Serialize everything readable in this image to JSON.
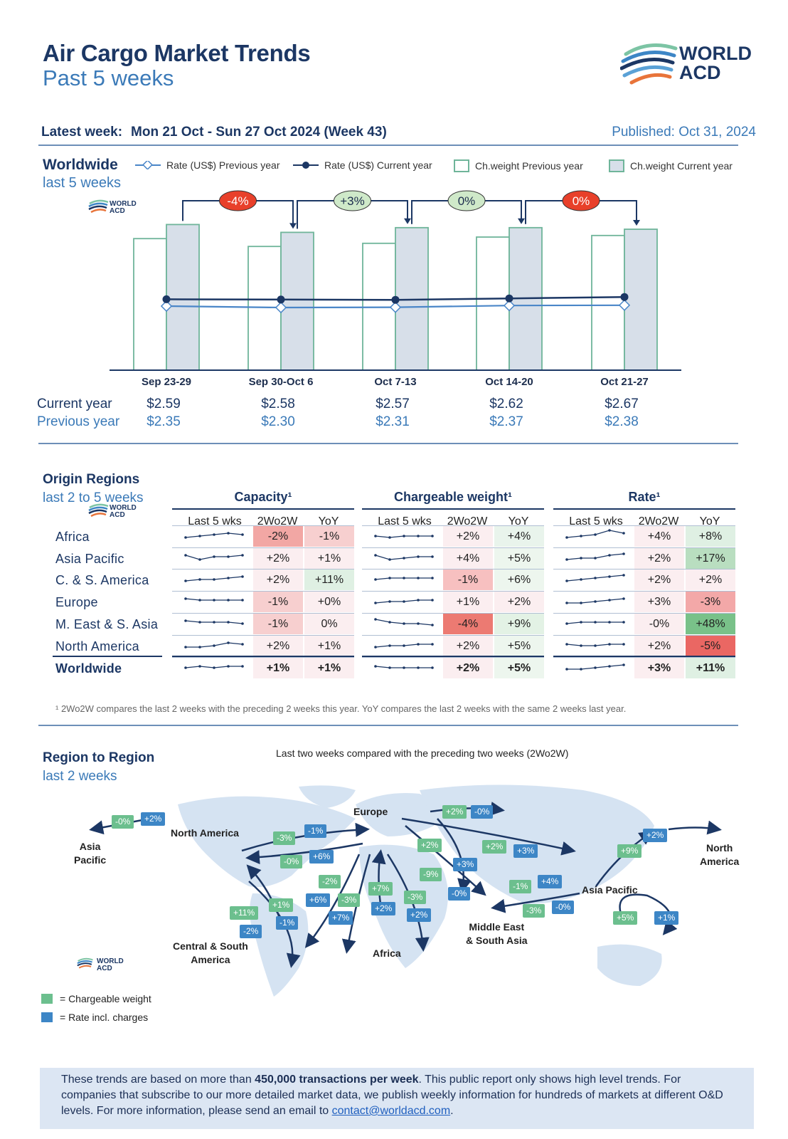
{
  "header": {
    "title": "Air Cargo Market Trends",
    "subtitle": "Past 5 weeks",
    "logo_text_1": "WORLD",
    "logo_text_2": "ACD",
    "latest_label": "Latest week:",
    "latest_value": "Mon 21 Oct - Sun 27 Oct 2024 (Week 43)",
    "published": "Published: Oct 31, 2024"
  },
  "worldwide": {
    "title": "Worldwide",
    "subtitle": "last 5 weeks",
    "small_logo_1": "WORLD",
    "small_logo_2": "ACD",
    "legend": {
      "rate_prev": "Rate (US$) Previous year",
      "rate_curr": "Rate (US$) Current year",
      "cw_prev": "Ch.weight Previous year",
      "cw_curr": "Ch.weight Current year"
    },
    "current_label": "Current year",
    "previous_label": "Previous year"
  },
  "chart_data": {
    "type": "bar",
    "categories": [
      "Sep 23-29",
      "Sep 30-Oct 6",
      "Oct 7-13",
      "Oct 14-20",
      "Oct 21-27"
    ],
    "series": [
      {
        "name": "Ch.weight Previous year",
        "kind": "bar",
        "values": [
          0.84,
          0.79,
          0.81,
          0.85,
          0.86
        ]
      },
      {
        "name": "Ch.weight Current year",
        "kind": "bar",
        "values": [
          0.93,
          0.88,
          0.91,
          0.91,
          0.9
        ]
      },
      {
        "name": "Rate (US$) Current year",
        "kind": "line",
        "values": [
          2.59,
          2.58,
          2.57,
          2.62,
          2.67
        ],
        "labels": [
          "$2.59",
          "$2.58",
          "$2.57",
          "$2.62",
          "$2.67"
        ]
      },
      {
        "name": "Rate (US$) Previous year",
        "kind": "line",
        "values": [
          2.35,
          2.3,
          2.31,
          2.37,
          2.38
        ],
        "labels": [
          "$2.35",
          "$2.30",
          "$2.31",
          "$2.37",
          "$2.38"
        ]
      }
    ],
    "week_changes": [
      "-4%",
      "+3%",
      "0%",
      "0%"
    ],
    "week_change_colors": [
      "#e8402a",
      "#cfe9c9",
      "#cfe9c9",
      "#e8402a"
    ],
    "rate_range": [
      0,
      3.2
    ],
    "weight_scale": "relative",
    "legend_position": "top"
  },
  "origin": {
    "title": "Origin Regions",
    "subtitle": "last 2 to 5 weeks",
    "groups": [
      "Capacity¹",
      "Chargeable weight¹",
      "Rate¹"
    ],
    "subheads": [
      "Last 5 wks",
      "2Wo2W",
      "YoY"
    ],
    "rows": [
      {
        "name": "Africa",
        "cap": [
          "-2%",
          "-1%"
        ],
        "cw": [
          "+2%",
          "+4%"
        ],
        "rate": [
          "+4%",
          "+8%"
        ],
        "spark": [
          [
            3,
            4,
            5,
            6,
            5
          ],
          [
            4,
            3,
            4,
            4,
            4
          ],
          [
            3,
            4,
            5,
            8,
            6
          ]
        ],
        "colors": [
          "#f2a7a4",
          "#f7cfcf",
          "#fbeef0",
          "#e9f4ec",
          "#fbeef0",
          "#dff0e3"
        ]
      },
      {
        "name": "Asia Pacific",
        "cap": [
          "+2%",
          "+1%"
        ],
        "cw": [
          "+4%",
          "+5%"
        ],
        "rate": [
          "+2%",
          "+17%"
        ],
        "spark": [
          [
            6,
            3,
            5,
            5,
            6
          ],
          [
            6,
            3,
            4,
            5,
            5
          ],
          [
            3,
            4,
            4,
            6,
            7
          ]
        ],
        "colors": [
          "#fbeef0",
          "#fbeef0",
          "#fbeef0",
          "#edf6ee",
          "#fbeef0",
          "#b9dec0"
        ]
      },
      {
        "name": "C. & S. America",
        "cap": [
          "+2%",
          "+11%"
        ],
        "cw": [
          "-1%",
          "+6%"
        ],
        "rate": [
          "+2%",
          "+2%"
        ],
        "spark": [
          [
            3,
            4,
            4,
            5,
            6
          ],
          [
            4,
            5,
            5,
            5,
            5
          ],
          [
            3,
            4,
            5,
            6,
            7
          ]
        ],
        "colors": [
          "#fbeef0",
          "#dff0e3",
          "#f7c0c0",
          "#edf6ee",
          "#fbeef0",
          "#fbeef0"
        ]
      },
      {
        "name": "Europe",
        "cap": [
          "-1%",
          "+0%"
        ],
        "cw": [
          "+1%",
          "+2%"
        ],
        "rate": [
          "+3%",
          "-3%"
        ],
        "spark": [
          [
            6,
            5,
            5,
            5,
            5
          ],
          [
            3,
            4,
            4,
            5,
            5
          ],
          [
            3,
            3,
            4,
            5,
            6
          ]
        ],
        "colors": [
          "#f7cfcf",
          "#fbeef0",
          "#fbeef0",
          "#fbeef0",
          "#fbeef0",
          "#f3a8a8"
        ]
      },
      {
        "name": "M. East & S. Asia",
        "cap": [
          "-1%",
          "0%"
        ],
        "cw": [
          "-4%",
          "+9%"
        ],
        "rate": [
          "-0%",
          "+48%"
        ],
        "spark": [
          [
            6,
            5,
            5,
            5,
            4
          ],
          [
            7,
            5,
            4,
            4,
            3
          ],
          [
            4,
            5,
            5,
            5,
            5
          ]
        ],
        "colors": [
          "#f7cfcf",
          "#fbeef0",
          "#ec7a72",
          "#e3f2e5",
          "#fbeef0",
          "#79c189"
        ]
      },
      {
        "name": "North America",
        "cap": [
          "+2%",
          "+1%"
        ],
        "cw": [
          "+2%",
          "+5%"
        ],
        "rate": [
          "+2%",
          "-5%"
        ],
        "spark": [
          [
            3,
            3,
            4,
            6,
            5
          ],
          [
            3,
            4,
            4,
            5,
            5
          ],
          [
            5,
            4,
            4,
            5,
            5
          ]
        ],
        "colors": [
          "#fbeef0",
          "#fbeef0",
          "#fbeef0",
          "#edf6ee",
          "#fbeef0",
          "#ea6763"
        ]
      },
      {
        "name": "Worldwide",
        "cap": [
          "+1%",
          "+1%"
        ],
        "cw": [
          "+2%",
          "+5%"
        ],
        "rate": [
          "+3%",
          "+11%"
        ],
        "spark": [
          [
            4,
            5,
            4,
            5,
            5
          ],
          [
            5,
            4,
            4,
            4,
            4
          ],
          [
            3,
            3,
            4,
            5,
            6
          ]
        ],
        "colors": [
          "#fbeef0",
          "#fbeef0",
          "#fbeef0",
          "#edf6ee",
          "#fbeef0",
          "#dff0e3"
        ]
      }
    ],
    "footnote": "¹ 2Wo2W compares the last 2 weeks with the preceding 2 weeks this year. YoY compares the last 2 weeks with the same 2 weeks last year."
  },
  "region": {
    "title": "Region to Region",
    "subtitle": "last 2 weeks",
    "caption": "Last two weeks compared with the preceding two weeks (2Wo2W)",
    "labels": {
      "europe": "Europe",
      "north_america": "North America",
      "asia_pacific_left_1": "Asia",
      "asia_pacific_left_2": "Pacific",
      "north_america_right_1": "North",
      "north_america_right_2": "America",
      "asia_pacific": "Asia Pacific",
      "csa_1": "Central & South",
      "csa_2": "America",
      "africa": "Africa",
      "mesa_1": "Middle East",
      "mesa_2": "& South Asia"
    },
    "badges": [
      {
        "t": "-0%",
        "c": "g"
      },
      {
        "t": "+2%",
        "c": "b"
      },
      {
        "t": "+2%",
        "c": "g"
      },
      {
        "t": "-0%",
        "c": "b"
      },
      {
        "t": "-3%",
        "c": "g"
      },
      {
        "t": "-1%",
        "c": "b"
      },
      {
        "t": "-0%",
        "c": "g"
      },
      {
        "t": "+6%",
        "c": "b"
      },
      {
        "t": "+2%",
        "c": "g"
      },
      {
        "t": "+3%",
        "c": "b"
      },
      {
        "t": "+2%",
        "c": "g"
      },
      {
        "t": "+3%",
        "c": "b"
      },
      {
        "t": "+9%",
        "c": "g"
      },
      {
        "t": "+2%",
        "c": "b"
      },
      {
        "t": "-9%",
        "c": "g"
      },
      {
        "t": "-0%",
        "c": "b"
      },
      {
        "t": "-1%",
        "c": "g"
      },
      {
        "t": "+4%",
        "c": "b"
      },
      {
        "t": "-3%",
        "c": "g"
      },
      {
        "t": "-0%",
        "c": "b"
      },
      {
        "t": "-2%",
        "c": "g"
      },
      {
        "t": "+6%",
        "c": "b"
      },
      {
        "t": "-3%",
        "c": "g"
      },
      {
        "t": "+7%",
        "c": "b"
      },
      {
        "t": "+7%",
        "c": "g"
      },
      {
        "t": "+2%",
        "c": "b"
      },
      {
        "t": "-3%",
        "c": "g"
      },
      {
        "t": "+2%",
        "c": "b"
      },
      {
        "t": "+11%",
        "c": "g"
      },
      {
        "t": "-2%",
        "c": "b"
      },
      {
        "t": "+1%",
        "c": "g"
      },
      {
        "t": "-1%",
        "c": "b"
      },
      {
        "t": "+5%",
        "c": "g"
      },
      {
        "t": "+1%",
        "c": "b"
      }
    ],
    "key_cw": "= Chargeable weight",
    "key_rate": "= Rate incl. charges",
    "colors": {
      "green": "#6cbf8e",
      "blue": "#3d86c6"
    }
  },
  "note": {
    "p1": "These trends are based on more than ",
    "p1b": "450,000 transactions per week",
    "p2": ". This public report only shows high level trends. For companies that subscribe to our more detailed market data, we publish weekly information for hundreds of markets at different O&D levels. For more information, please send an email to ",
    "email": "contact@worldacd.com",
    "p3": "."
  }
}
